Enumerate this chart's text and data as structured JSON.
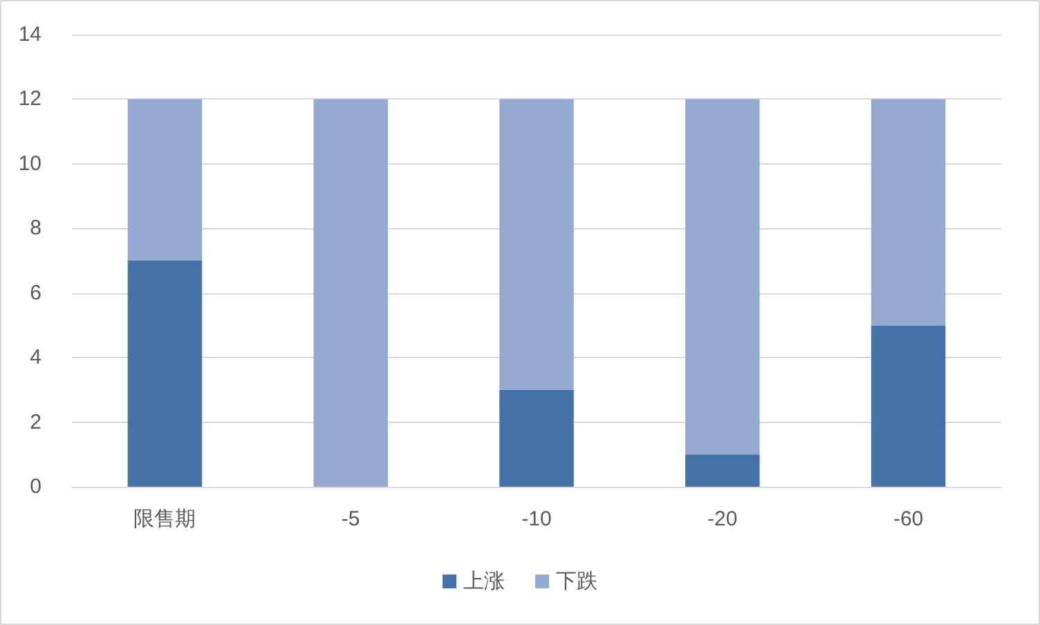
{
  "chart_data": {
    "type": "bar",
    "stacked": true,
    "categories": [
      "限售期",
      "-5",
      "-10",
      "-20",
      "-60"
    ],
    "series": [
      {
        "name": "上涨",
        "color": "#4472a7",
        "values": [
          7,
          0,
          3,
          1,
          5
        ]
      },
      {
        "name": "下跌",
        "color": "#95aad1",
        "values": [
          5,
          12,
          9,
          11,
          7
        ]
      }
    ],
    "ylim": [
      0,
      14
    ],
    "yticks": [
      0,
      2,
      4,
      6,
      8,
      10,
      12,
      14
    ],
    "grid": "y",
    "legend": "bottom"
  }
}
